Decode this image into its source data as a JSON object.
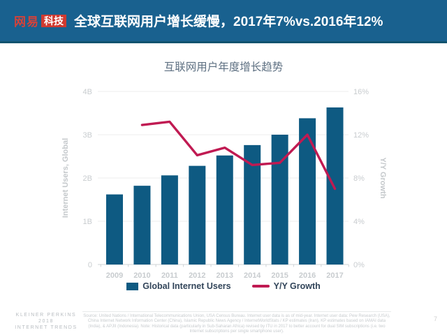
{
  "header": {
    "logo": {
      "netease": "网易",
      "tech": "科技"
    },
    "title": "全球互联网用户增长缓慢，2017年7%vs.2016年12%"
  },
  "chart_data": {
    "type": "bar",
    "title": "互联网用户年度增长趋势",
    "categories": [
      "2009",
      "2010",
      "2011",
      "2012",
      "2013",
      "2014",
      "2015",
      "2016",
      "2017"
    ],
    "series": [
      {
        "name": "Global Internet Users",
        "type": "bar",
        "axis": "left",
        "unit": "B",
        "color": "#0e5a82",
        "values": [
          1.62,
          1.82,
          2.06,
          2.28,
          2.52,
          2.76,
          3.0,
          3.38,
          3.63
        ]
      },
      {
        "name": "Y/Y Growth",
        "type": "line",
        "axis": "right",
        "unit": "%",
        "color": "#c01a52",
        "values": [
          null,
          12.9,
          13.2,
          10.1,
          10.8,
          9.2,
          9.4,
          12.0,
          7.0
        ]
      }
    ],
    "left_axis": {
      "label": "Internet Users, Global",
      "ticks": [
        "4B",
        "3B",
        "2B",
        "1B",
        "0"
      ],
      "min": 0,
      "max": 4
    },
    "right_axis": {
      "label": "Y/Y Growth",
      "ticks": [
        "16%",
        "12%",
        "8%",
        "4%",
        "0%"
      ],
      "min": 0,
      "max": 16
    },
    "grid": true,
    "legend_position": "bottom"
  },
  "footer": {
    "brand": [
      "KLEINER PERKINS",
      "2018",
      "INTERNET TRENDS"
    ],
    "source": "Source: United Nations / International Telecommunications Union, USA Census Bureau. Internet user data is as of mid-year. Internet user data: Pew Research (USA), China Internet Network Information Center (China), Islamic Republic News Agency / InternetWorldStats / KP estimates (Iran), KP estimates based on IAMAI data (India), & APJII (Indonesia).  Note: Historical data (particularly in Sub-Saharan Africa) revised by ITU in 2017 to better account for dual SIM subscriptions (i.e. two Internet subscriptions per single smartphone user).",
    "page_number": "7"
  }
}
